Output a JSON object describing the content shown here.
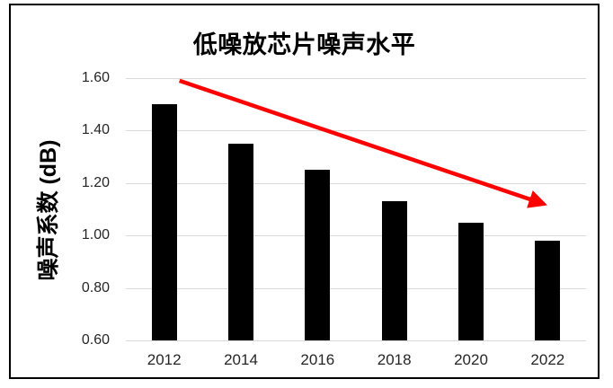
{
  "window": {
    "background": "#ffffff",
    "frame_border_color": "#000000"
  },
  "chart_data": {
    "type": "bar",
    "title": "低噪放芯片噪声水平",
    "xlabel": "",
    "ylabel": "噪声系数 (dB)",
    "categories": [
      "2012",
      "2014",
      "2016",
      "2018",
      "2020",
      "2022"
    ],
    "values": [
      1.5,
      1.35,
      1.25,
      1.13,
      1.05,
      0.98
    ],
    "ylim": [
      0.6,
      1.6
    ],
    "ytick_step": 0.2,
    "ytick_labels": [
      "0.60",
      "0.80",
      "1.00",
      "1.20",
      "1.40",
      "1.60"
    ],
    "grid": true,
    "legend": false,
    "bar_color": "#000000",
    "grid_color": "#d9d9d9",
    "tick_label_color": "#262626",
    "title_color": "#000000",
    "annotation": {
      "kind": "trend-arrow",
      "direction": "down",
      "color": "#ff0000",
      "from": {
        "x_index": 0.2,
        "value": 1.59
      },
      "to": {
        "x_index": 4.95,
        "value": 1.12
      }
    }
  }
}
